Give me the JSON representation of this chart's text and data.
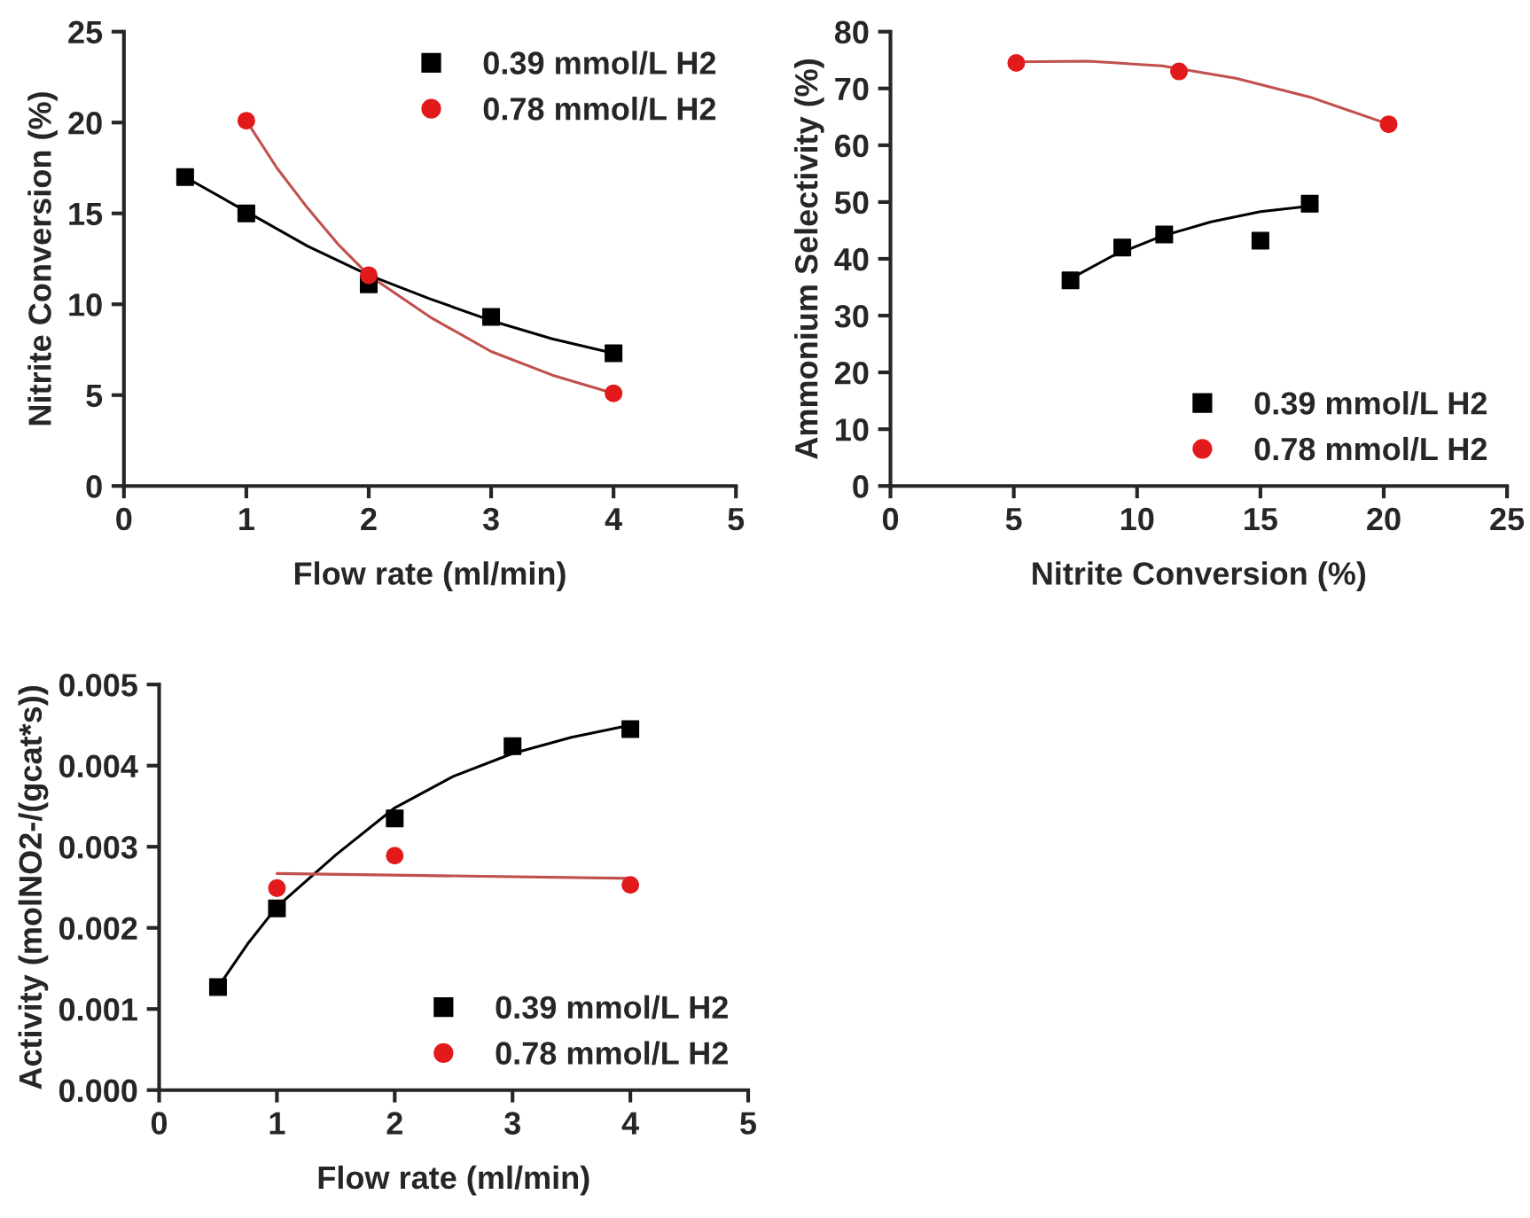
{
  "chart_data": [
    {
      "type": "scatter",
      "xlabel": "Flow rate (ml/min)",
      "ylabel": "Nitrite Conversion (%)",
      "xlim": [
        0,
        5
      ],
      "ylim": [
        0,
        25
      ],
      "xticks": [
        0,
        1,
        2,
        3,
        4,
        5
      ],
      "yticks": [
        0,
        5,
        10,
        15,
        20,
        25
      ],
      "legend": "top right",
      "grid": false,
      "series": [
        {
          "name": "0.39 mmol/L H2",
          "marker": "square",
          "color": "#000000",
          "x": [
            0.5,
            1,
            2,
            3,
            4
          ],
          "values": [
            17,
            15,
            11.1,
            9.3,
            7.3
          ]
        },
        {
          "name": "0.78 mmol/L H2",
          "marker": "circle",
          "color": "#e31a1c",
          "x": [
            1,
            2,
            4
          ],
          "values": [
            20.1,
            11.6,
            5.1
          ]
        },
        {
          "type": "line",
          "color": "#000000",
          "x": [
            0.5,
            1,
            1.5,
            2,
            2.5,
            3,
            3.5,
            4
          ],
          "values": [
            17,
            15.1,
            13.2,
            11.6,
            10.3,
            9.1,
            8.1,
            7.3
          ]
        },
        {
          "type": "line",
          "color": "#c0504d",
          "x": [
            1,
            1.25,
            1.5,
            1.75,
            2,
            2.5,
            3,
            3.5,
            4
          ],
          "values": [
            20.1,
            17.5,
            15.3,
            13.3,
            11.6,
            9.3,
            7.4,
            6.1,
            5.1
          ]
        }
      ]
    },
    {
      "type": "scatter",
      "xlabel": "Nitrite Conversion (%)",
      "ylabel": "Ammonium Selectivity (%)",
      "xlim": [
        0,
        25
      ],
      "ylim": [
        0,
        80
      ],
      "xticks": [
        0,
        5,
        10,
        15,
        20,
        25
      ],
      "yticks": [
        0,
        10,
        20,
        30,
        40,
        50,
        60,
        70,
        80
      ],
      "legend": "lower right",
      "grid": false,
      "series": [
        {
          "name": "0.39 mmol/L H2",
          "marker": "square",
          "color": "#000000",
          "x": [
            7.3,
            9.4,
            11.1,
            15,
            17
          ],
          "values": [
            36.2,
            42,
            44.3,
            43.2,
            49.7
          ]
        },
        {
          "name": "0.78 mmol/L H2",
          "marker": "circle",
          "color": "#e31a1c",
          "x": [
            5.1,
            11.7,
            20.2
          ],
          "values": [
            74.5,
            73,
            63.7
          ]
        },
        {
          "type": "line",
          "color": "#000000",
          "x": [
            7.3,
            9,
            11,
            13,
            15,
            17
          ],
          "values": [
            36.5,
            40.5,
            44,
            46.5,
            48.3,
            49.3
          ]
        },
        {
          "type": "line",
          "color": "#c0504d",
          "x": [
            5.1,
            8,
            11,
            14,
            17,
            20.2
          ],
          "values": [
            74.7,
            74.8,
            74,
            71.8,
            68.5,
            63.7
          ]
        }
      ]
    },
    {
      "type": "scatter",
      "xlabel": "Flow rate (ml/min)",
      "ylabel": "Activity (molNO2-/(gcat*s))",
      "xlim": [
        0,
        5
      ],
      "ylim": [
        0,
        0.005
      ],
      "xticks": [
        0,
        1,
        2,
        3,
        4,
        5
      ],
      "yticks": [
        {
          "value": 0,
          "label": "0.000"
        },
        {
          "value": 0.001,
          "label": "0.001"
        },
        {
          "value": 0.002,
          "label": "0.002"
        },
        {
          "value": 0.003,
          "label": "0.003"
        },
        {
          "value": 0.004,
          "label": "0.004"
        },
        {
          "value": 0.005,
          "label": "0.005"
        }
      ],
      "legend": "lower right",
      "grid": false,
      "series": [
        {
          "name": "0.39 mmol/L H2",
          "marker": "square",
          "color": "#000000",
          "x": [
            0.5,
            1,
            2,
            3,
            4
          ],
          "values": [
            0.00127,
            0.00224,
            0.00335,
            0.00424,
            0.00445
          ]
        },
        {
          "name": "0.78 mmol/L H2",
          "marker": "circle",
          "color": "#e31a1c",
          "x": [
            1,
            2,
            4
          ],
          "values": [
            0.00249,
            0.00289,
            0.00253
          ]
        },
        {
          "type": "line",
          "color": "#000000",
          "x": [
            0.5,
            0.75,
            1,
            1.5,
            2,
            2.5,
            3,
            3.5,
            4
          ],
          "values": [
            0.00127,
            0.0018,
            0.00226,
            0.0029,
            0.00348,
            0.00387,
            0.00415,
            0.00435,
            0.0045
          ]
        },
        {
          "type": "line",
          "color": "#c0504d",
          "x": [
            1,
            4
          ],
          "values": [
            0.00267,
            0.00261
          ]
        }
      ]
    }
  ]
}
